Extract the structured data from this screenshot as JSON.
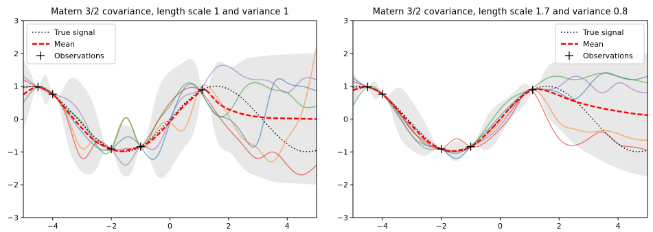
{
  "chart_data": [
    {
      "type": "line",
      "title": "Matern 3/2 covariance, length scale 1 and variance 1",
      "xlabel": "",
      "ylabel": "",
      "xlim": [
        -5,
        5
      ],
      "ylim": [
        -3,
        3
      ],
      "xticks": [
        "−4",
        "−2",
        "0",
        "2",
        "4"
      ],
      "xtick_values": [
        -4,
        -2,
        0,
        2,
        4
      ],
      "yticks": [
        "−3",
        "−2",
        "−1",
        "0",
        "1",
        "2",
        "3"
      ],
      "ytick_values": [
        -3,
        -2,
        -1,
        0,
        1,
        2,
        3
      ],
      "grid": false,
      "legend_position": "top-left",
      "legend": [
        "True signal",
        "Mean",
        "Observations"
      ],
      "colors": {
        "true_signal": "#000000",
        "mean": "#ff0000",
        "observations": "#000000",
        "band": "#e8e8e8",
        "samples": [
          "#1f77b4",
          "#ff7f0e",
          "#2ca02c",
          "#d62728",
          "#9467bd"
        ]
      },
      "observations": {
        "x": [
          -4.5,
          -4.0,
          -2.0,
          -1.0,
          1.1
        ],
        "y": [
          0.98,
          0.76,
          -0.91,
          -0.84,
          0.89
        ]
      },
      "true_signal": {
        "x": [
          -5,
          -4.5,
          -4,
          -3.5,
          -3,
          -2.5,
          -2,
          -1.5,
          -1,
          -0.5,
          0,
          0.5,
          1,
          1.5,
          2,
          2.5,
          3,
          3.5,
          4,
          4.5,
          5
        ],
        "y": [
          0.96,
          0.98,
          0.76,
          0.35,
          -0.14,
          -0.6,
          -0.91,
          -0.99,
          -0.84,
          -0.48,
          0.0,
          0.48,
          0.84,
          1.0,
          0.91,
          0.6,
          0.14,
          -0.35,
          -0.76,
          -0.98,
          -0.96
        ]
      },
      "mean": {
        "x": [
          -5,
          -4.75,
          -4.5,
          -4.25,
          -4,
          -3.5,
          -3,
          -2.5,
          -2,
          -1.75,
          -1.5,
          -1.25,
          -1,
          -0.5,
          0,
          0.5,
          1,
          1.1,
          1.5,
          2,
          2.5,
          3,
          3.5,
          4,
          4.5,
          5
        ],
        "y": [
          0.75,
          0.9,
          0.98,
          0.9,
          0.76,
          0.25,
          -0.28,
          -0.7,
          -0.91,
          -0.98,
          -0.96,
          -0.9,
          -0.84,
          -0.55,
          -0.08,
          0.42,
          0.82,
          0.89,
          0.62,
          0.3,
          0.15,
          0.07,
          0.03,
          0.02,
          0.01,
          0.0
        ]
      },
      "confidence_band": {
        "x": [
          -5,
          -4.75,
          -4.5,
          -4.25,
          -4,
          -3.5,
          -3,
          -2.5,
          -2,
          -1.75,
          -1.5,
          -1.25,
          -1,
          -0.5,
          0,
          0.5,
          1,
          1.1,
          1.5,
          2,
          2.5,
          3,
          3.5,
          4,
          4.5,
          5
        ],
        "lower": [
          -0.3,
          0.4,
          0.98,
          0.45,
          0.76,
          -0.7,
          -1.6,
          -1.5,
          -0.91,
          -1.5,
          -1.75,
          -1.5,
          -0.84,
          -1.65,
          -1.55,
          -0.85,
          0.35,
          0.89,
          -0.3,
          -1.0,
          -1.5,
          -1.75,
          -1.9,
          -1.95,
          -1.97,
          -2.0
        ],
        "upper": [
          1.8,
          1.4,
          0.98,
          1.35,
          0.76,
          1.15,
          1.05,
          0.15,
          -0.91,
          -0.25,
          -0.2,
          -0.35,
          -0.84,
          0.6,
          1.45,
          1.75,
          1.3,
          0.89,
          1.55,
          1.6,
          1.8,
          1.9,
          1.95,
          1.97,
          2.0,
          2.0
        ]
      },
      "samples": [
        {
          "x": [
            -5,
            -4.5,
            -4,
            -3.5,
            -3,
            -2.5,
            -2,
            -1.5,
            -1,
            -0.5,
            0,
            0.5,
            1,
            1.5,
            2,
            2.5,
            3,
            3.5,
            4,
            4.5,
            5
          ],
          "y": [
            1.0,
            0.98,
            0.76,
            0.2,
            -0.4,
            -0.85,
            -0.91,
            -0.55,
            -0.84,
            -1.2,
            -0.1,
            0.95,
            0.9,
            0.2,
            0.0,
            -0.5,
            -0.7,
            1.0,
            1.1,
            1.0,
            0.85
          ]
        },
        {
          "x": [
            -5,
            -4.5,
            -4,
            -3.5,
            -3,
            -2.5,
            -2,
            -1.5,
            -1,
            -0.5,
            0,
            0.5,
            1,
            1.5,
            2,
            2.5,
            3,
            3.5,
            4,
            4.5,
            5
          ],
          "y": [
            0.95,
            0.98,
            0.76,
            0.1,
            -0.9,
            -0.6,
            -0.91,
            0.05,
            -0.84,
            -0.4,
            -0.1,
            -0.3,
            0.89,
            0.8,
            0.1,
            -0.6,
            -0.9,
            -1.3,
            -0.6,
            0.2,
            2.2
          ]
        },
        {
          "x": [
            -5,
            -4.5,
            -4,
            -3.5,
            -3,
            -2.5,
            -2,
            -1.5,
            -1,
            -0.5,
            0,
            0.5,
            1,
            1.5,
            2,
            2.5,
            3,
            3.5,
            4,
            4.5,
            5
          ],
          "y": [
            0.5,
            0.98,
            0.76,
            0.3,
            -0.1,
            -0.8,
            -0.91,
            0.05,
            -0.84,
            -0.2,
            0.4,
            1.05,
            0.89,
            0.2,
            0.2,
            0.9,
            1.1,
            0.9,
            0.8,
            0.4,
            0.4
          ]
        },
        {
          "x": [
            -5,
            -4.5,
            -4,
            -3.5,
            -3,
            -2.5,
            -2,
            -1.5,
            -1,
            -0.5,
            0,
            0.5,
            1,
            1.5,
            2,
            2.5,
            3,
            3.5,
            4,
            4.5,
            5
          ],
          "y": [
            1.2,
            0.98,
            0.76,
            0.0,
            -1.2,
            -0.7,
            -0.91,
            -0.9,
            -0.84,
            -0.2,
            0.5,
            0.9,
            0.89,
            0.3,
            -0.3,
            -0.8,
            -1.2,
            -1.0,
            -1.4,
            -1.7,
            -1.4
          ]
        },
        {
          "x": [
            -5,
            -4.5,
            -4,
            -3.5,
            -3,
            -2.5,
            -2,
            -1.5,
            -1,
            -0.5,
            0,
            0.5,
            1,
            1.5,
            2,
            2.5,
            3,
            3.5,
            4,
            4.5,
            5
          ],
          "y": [
            1.3,
            0.98,
            0.76,
            0.6,
            0.1,
            -0.7,
            -0.91,
            -1.4,
            -0.84,
            -0.9,
            0.0,
            0.7,
            0.89,
            1.5,
            1.6,
            1.3,
            1.2,
            1.1,
            0.8,
            1.2,
            1.2
          ]
        }
      ]
    },
    {
      "type": "line",
      "title": "Matern 3/2 covariance, length scale 1.7 and variance 0.8",
      "xlabel": "",
      "ylabel": "",
      "xlim": [
        -5,
        5
      ],
      "ylim": [
        -3,
        3
      ],
      "xticks": [
        "−4",
        "−2",
        "0",
        "2",
        "4"
      ],
      "xtick_values": [
        -4,
        -2,
        0,
        2,
        4
      ],
      "yticks": [
        "−3",
        "−2",
        "−1",
        "0",
        "1",
        "2",
        "3"
      ],
      "ytick_values": [
        -3,
        -2,
        -1,
        0,
        1,
        2,
        3
      ],
      "grid": false,
      "legend_position": "top-right",
      "legend": [
        "True signal",
        "Mean",
        "Observations"
      ],
      "colors": {
        "true_signal": "#000000",
        "mean": "#ff0000",
        "observations": "#000000",
        "band": "#e8e8e8",
        "samples": [
          "#1f77b4",
          "#ff7f0e",
          "#2ca02c",
          "#d62728",
          "#9467bd"
        ]
      },
      "observations": {
        "x": [
          -4.5,
          -4.0,
          -2.0,
          -1.0,
          1.1
        ],
        "y": [
          0.98,
          0.76,
          -0.91,
          -0.84,
          0.89
        ]
      },
      "true_signal": {
        "x": [
          -5,
          -4.5,
          -4,
          -3.5,
          -3,
          -2.5,
          -2,
          -1.5,
          -1,
          -0.5,
          0,
          0.5,
          1,
          1.5,
          2,
          2.5,
          3,
          3.5,
          4,
          4.5,
          5
        ],
        "y": [
          0.96,
          0.98,
          0.76,
          0.35,
          -0.14,
          -0.6,
          -0.91,
          -0.99,
          -0.84,
          -0.48,
          0.0,
          0.48,
          0.84,
          1.0,
          0.91,
          0.6,
          0.14,
          -0.35,
          -0.76,
          -0.98,
          -0.96
        ]
      },
      "mean": {
        "x": [
          -5,
          -4.75,
          -4.5,
          -4.25,
          -4,
          -3.5,
          -3,
          -2.5,
          -2,
          -1.75,
          -1.5,
          -1.25,
          -1,
          -0.5,
          0,
          0.5,
          1,
          1.1,
          1.5,
          2,
          2.5,
          3,
          3.5,
          4,
          4.5,
          5
        ],
        "y": [
          0.88,
          0.95,
          0.98,
          0.9,
          0.76,
          0.3,
          -0.2,
          -0.65,
          -0.91,
          -0.98,
          -0.97,
          -0.92,
          -0.84,
          -0.48,
          0.0,
          0.5,
          0.85,
          0.89,
          0.88,
          0.72,
          0.55,
          0.42,
          0.32,
          0.24,
          0.17,
          0.12
        ]
      },
      "confidence_band": {
        "x": [
          -5,
          -4.75,
          -4.5,
          -4.25,
          -4,
          -3.5,
          -3,
          -2.5,
          -2,
          -1.75,
          -1.5,
          -1.25,
          -1,
          -0.5,
          0,
          0.5,
          1,
          1.1,
          1.5,
          2,
          2.5,
          3,
          3.5,
          4,
          4.5,
          5
        ],
        "lower": [
          0.4,
          0.8,
          0.98,
          0.6,
          0.76,
          -0.35,
          -0.95,
          -1.1,
          -0.91,
          -1.15,
          -1.28,
          -1.12,
          -0.84,
          -0.95,
          -0.5,
          0.15,
          0.7,
          0.89,
          0.3,
          -0.3,
          -0.75,
          -1.05,
          -1.3,
          -1.5,
          -1.65,
          -1.75
        ],
        "upper": [
          1.4,
          1.12,
          0.98,
          1.15,
          0.76,
          0.95,
          0.55,
          -0.2,
          -0.91,
          -0.8,
          -0.66,
          -0.72,
          -0.84,
          0.0,
          0.5,
          0.85,
          1.0,
          0.89,
          1.45,
          1.75,
          1.85,
          1.9,
          1.95,
          2.0,
          2.0,
          2.0
        ]
      },
      "samples": [
        {
          "x": [
            -5,
            -4.5,
            -4,
            -3.5,
            -3,
            -2.5,
            -2,
            -1.5,
            -1,
            -0.5,
            0,
            0.5,
            1,
            1.5,
            2,
            2.5,
            3,
            3.5,
            4,
            4.5,
            5
          ],
          "y": [
            1.25,
            0.98,
            0.76,
            0.25,
            -0.3,
            -0.8,
            -0.91,
            -1.2,
            -0.84,
            -0.4,
            0.1,
            0.55,
            0.89,
            0.9,
            0.8,
            0.6,
            1.0,
            1.4,
            1.3,
            1.2,
            1.3
          ]
        },
        {
          "x": [
            -5,
            -4.5,
            -4,
            -3.5,
            -3,
            -2.5,
            -2,
            -1.5,
            -1,
            -0.5,
            0,
            0.5,
            1,
            1.5,
            2,
            2.5,
            3,
            3.5,
            4,
            4.5,
            5
          ],
          "y": [
            0.9,
            0.98,
            0.76,
            0.25,
            -0.35,
            -0.75,
            -0.91,
            -0.95,
            -0.84,
            -0.55,
            -0.1,
            0.4,
            0.89,
            0.6,
            -0.1,
            -0.3,
            -0.4,
            -0.35,
            -0.45,
            -0.6,
            -0.65
          ]
        },
        {
          "x": [
            -5,
            -4.5,
            -4,
            -3.5,
            -3,
            -2.5,
            -2,
            -1.5,
            -1,
            -0.5,
            0,
            0.5,
            1,
            1.5,
            2,
            2.5,
            3,
            3.5,
            4,
            4.5,
            5
          ],
          "y": [
            0.4,
            0.98,
            0.76,
            0.15,
            -0.5,
            -0.9,
            -0.91,
            -1.0,
            -0.84,
            -0.3,
            0.3,
            0.7,
            0.89,
            1.2,
            1.3,
            1.2,
            1.3,
            1.4,
            1.3,
            1.2,
            1.1
          ]
        },
        {
          "x": [
            -5,
            -4.5,
            -4,
            -3.5,
            -3,
            -2.5,
            -2,
            -1.5,
            -1,
            -0.5,
            0,
            0.5,
            1,
            1.5,
            2,
            2.5,
            3,
            3.5,
            4,
            4.5,
            5
          ],
          "y": [
            1.15,
            0.98,
            0.76,
            0.3,
            -0.35,
            -0.7,
            -0.91,
            -0.6,
            -0.84,
            -0.7,
            -0.3,
            0.3,
            0.89,
            0.2,
            -0.6,
            -0.8,
            -0.6,
            -0.4,
            -0.75,
            -0.85,
            -0.95
          ]
        },
        {
          "x": [
            -5,
            -4.5,
            -4,
            -3.5,
            -3,
            -2.5,
            -2,
            -1.5,
            -1,
            -0.5,
            0,
            0.5,
            1,
            1.5,
            2,
            2.5,
            3,
            3.5,
            4,
            4.5,
            5
          ],
          "y": [
            1.0,
            0.98,
            0.76,
            0.2,
            -0.5,
            -0.8,
            -0.91,
            -1.05,
            -0.84,
            -0.6,
            -0.2,
            0.4,
            0.89,
            0.9,
            1.0,
            1.3,
            1.1,
            0.8,
            1.1,
            0.9,
            0.8
          ]
        }
      ]
    }
  ]
}
